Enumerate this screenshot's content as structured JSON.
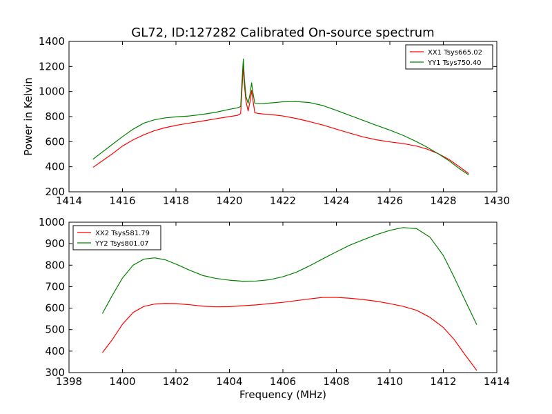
{
  "figure": {
    "title": "GL72, ID:127282 Calibrated On-source spectrum",
    "xlabel": "Frequency (MHz)",
    "ylabel": "Power in Kelvin"
  },
  "chart_data": [
    {
      "type": "line",
      "xlim": [
        1414,
        1430
      ],
      "ylim": [
        200,
        1400
      ],
      "xticks": [
        1414,
        1416,
        1418,
        1420,
        1422,
        1424,
        1426,
        1428,
        1430
      ],
      "yticks": [
        200,
        400,
        600,
        800,
        1000,
        1200,
        1400
      ],
      "legend_position": "top-right",
      "grid": false,
      "series": [
        {
          "name": "XX1 Tsys665.02",
          "color": "#ff0000",
          "points": [
            [
              1414.9,
              395
            ],
            [
              1415.2,
              440
            ],
            [
              1415.6,
              500
            ],
            [
              1416.0,
              565
            ],
            [
              1416.4,
              615
            ],
            [
              1416.8,
              655
            ],
            [
              1417.2,
              688
            ],
            [
              1417.6,
              712
            ],
            [
              1418.0,
              730
            ],
            [
              1418.5,
              748
            ],
            [
              1419.0,
              765
            ],
            [
              1419.5,
              783
            ],
            [
              1420.0,
              800
            ],
            [
              1420.3,
              810
            ],
            [
              1420.42,
              825
            ],
            [
              1420.47,
              1020
            ],
            [
              1420.52,
              1200
            ],
            [
              1420.56,
              1050
            ],
            [
              1420.62,
              920
            ],
            [
              1420.7,
              845
            ],
            [
              1420.78,
              930
            ],
            [
              1420.83,
              1010
            ],
            [
              1420.88,
              930
            ],
            [
              1420.95,
              830
            ],
            [
              1421.2,
              822
            ],
            [
              1421.6,
              815
            ],
            [
              1422.0,
              805
            ],
            [
              1422.5,
              785
            ],
            [
              1423.0,
              760
            ],
            [
              1423.5,
              732
            ],
            [
              1424.0,
              700
            ],
            [
              1424.5,
              668
            ],
            [
              1425.0,
              638
            ],
            [
              1425.5,
              615
            ],
            [
              1426.0,
              598
            ],
            [
              1426.5,
              585
            ],
            [
              1427.0,
              565
            ],
            [
              1427.4,
              540
            ],
            [
              1427.8,
              505
            ],
            [
              1428.2,
              460
            ],
            [
              1428.6,
              400
            ],
            [
              1428.95,
              345
            ]
          ]
        },
        {
          "name": "YY1 Tsys750.40",
          "color": "#008000",
          "points": [
            [
              1414.9,
              460
            ],
            [
              1415.2,
              510
            ],
            [
              1415.6,
              575
            ],
            [
              1416.0,
              640
            ],
            [
              1416.4,
              700
            ],
            [
              1416.8,
              748
            ],
            [
              1417.2,
              775
            ],
            [
              1417.6,
              790
            ],
            [
              1418.0,
              798
            ],
            [
              1418.5,
              805
            ],
            [
              1419.0,
              818
            ],
            [
              1419.5,
              835
            ],
            [
              1420.0,
              858
            ],
            [
              1420.3,
              870
            ],
            [
              1420.42,
              880
            ],
            [
              1420.47,
              1080
            ],
            [
              1420.52,
              1260
            ],
            [
              1420.56,
              1100
            ],
            [
              1420.62,
              960
            ],
            [
              1420.7,
              905
            ],
            [
              1420.78,
              990
            ],
            [
              1420.83,
              1070
            ],
            [
              1420.88,
              990
            ],
            [
              1420.95,
              905
            ],
            [
              1421.2,
              903
            ],
            [
              1421.6,
              910
            ],
            [
              1422.0,
              918
            ],
            [
              1422.5,
              920
            ],
            [
              1423.0,
              912
            ],
            [
              1423.5,
              888
            ],
            [
              1424.0,
              850
            ],
            [
              1424.5,
              810
            ],
            [
              1425.0,
              770
            ],
            [
              1425.5,
              730
            ],
            [
              1426.0,
              692
            ],
            [
              1426.5,
              650
            ],
            [
              1427.0,
              600
            ],
            [
              1427.4,
              555
            ],
            [
              1427.8,
              505
            ],
            [
              1428.2,
              450
            ],
            [
              1428.6,
              385
            ],
            [
              1428.95,
              335
            ]
          ]
        }
      ]
    },
    {
      "type": "line",
      "xlim": [
        1398,
        1414
      ],
      "ylim": [
        300,
        1000
      ],
      "xticks": [
        1398,
        1400,
        1402,
        1404,
        1406,
        1408,
        1410,
        1412,
        1414
      ],
      "yticks": [
        300,
        400,
        500,
        600,
        700,
        800,
        900,
        1000
      ],
      "legend_position": "top-left",
      "grid": false,
      "series": [
        {
          "name": "XX2 Tsys581.79",
          "color": "#ff0000",
          "points": [
            [
              1399.25,
              393
            ],
            [
              1399.6,
              450
            ],
            [
              1400.0,
              525
            ],
            [
              1400.4,
              580
            ],
            [
              1400.8,
              608
            ],
            [
              1401.2,
              619
            ],
            [
              1401.6,
              622
            ],
            [
              1402.0,
              621
            ],
            [
              1402.5,
              616
            ],
            [
              1403.0,
              609
            ],
            [
              1403.5,
              606
            ],
            [
              1404.0,
              607
            ],
            [
              1404.5,
              611
            ],
            [
              1405.0,
              615
            ],
            [
              1405.5,
              621
            ],
            [
              1406.0,
              627
            ],
            [
              1406.5,
              635
            ],
            [
              1407.0,
              643
            ],
            [
              1407.5,
              650
            ],
            [
              1408.0,
              650
            ],
            [
              1408.5,
              646
            ],
            [
              1409.0,
              640
            ],
            [
              1409.5,
              632
            ],
            [
              1410.0,
              621
            ],
            [
              1410.5,
              608
            ],
            [
              1411.0,
              590
            ],
            [
              1411.5,
              557
            ],
            [
              1412.0,
              510
            ],
            [
              1412.4,
              455
            ],
            [
              1412.8,
              385
            ],
            [
              1413.25,
              310
            ]
          ]
        },
        {
          "name": "YY2 Tsys801.07",
          "color": "#008000",
          "points": [
            [
              1399.25,
              575
            ],
            [
              1399.6,
              655
            ],
            [
              1400.0,
              740
            ],
            [
              1400.4,
              800
            ],
            [
              1400.8,
              828
            ],
            [
              1401.2,
              834
            ],
            [
              1401.6,
              825
            ],
            [
              1402.0,
              805
            ],
            [
              1402.5,
              777
            ],
            [
              1403.0,
              752
            ],
            [
              1403.5,
              738
            ],
            [
              1404.0,
              730
            ],
            [
              1404.5,
              725
            ],
            [
              1405.0,
              726
            ],
            [
              1405.5,
              732
            ],
            [
              1406.0,
              746
            ],
            [
              1406.5,
              767
            ],
            [
              1407.0,
              797
            ],
            [
              1407.5,
              830
            ],
            [
              1408.0,
              862
            ],
            [
              1408.5,
              893
            ],
            [
              1409.0,
              918
            ],
            [
              1409.5,
              942
            ],
            [
              1410.0,
              962
            ],
            [
              1410.5,
              975
            ],
            [
              1411.0,
              970
            ],
            [
              1411.5,
              930
            ],
            [
              1412.0,
              845
            ],
            [
              1412.4,
              745
            ],
            [
              1412.8,
              640
            ],
            [
              1413.25,
              523
            ]
          ]
        }
      ]
    }
  ]
}
